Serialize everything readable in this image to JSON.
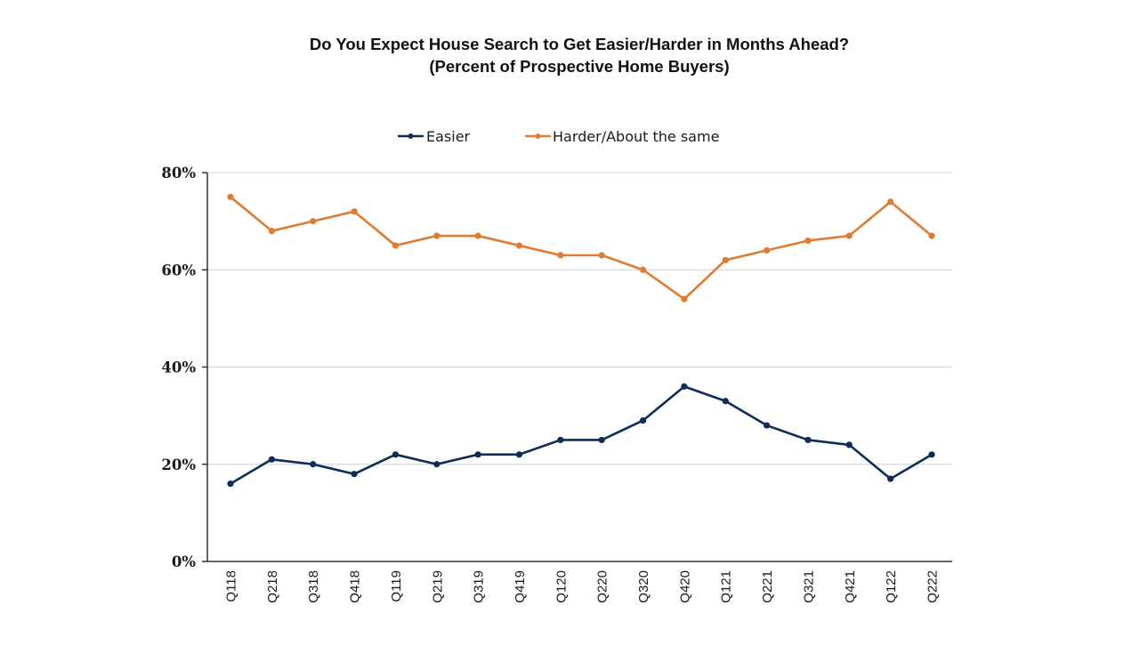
{
  "chart_data": {
    "type": "line",
    "title": "Do You Expect House Search to Get Easier/Harder in Months Ahead?",
    "subtitle": "(Percent of Prospective Home Buyers)",
    "xlabel": "",
    "ylabel": "",
    "ylim": [
      0,
      80
    ],
    "yticks": [
      0,
      20,
      40,
      60,
      80
    ],
    "ytick_labels": [
      "0%",
      "20%",
      "40%",
      "60%",
      "80%"
    ],
    "grid": true,
    "legend_position": "top-center",
    "categories": [
      "Q118",
      "Q218",
      "Q318",
      "Q418",
      "Q119",
      "Q219",
      "Q319",
      "Q419",
      "Q120",
      "Q220",
      "Q320",
      "Q420",
      "Q121",
      "Q221",
      "Q321",
      "Q421",
      "Q122",
      "Q222"
    ],
    "series": [
      {
        "name": "Easier",
        "color": "#0d2d57",
        "values": [
          16,
          21,
          20,
          18,
          22,
          20,
          22,
          22,
          25,
          25,
          29,
          36,
          33,
          28,
          25,
          24,
          17,
          22
        ]
      },
      {
        "name": "Harder/About the same",
        "color": "#e07b32",
        "values": [
          75,
          68,
          70,
          72,
          65,
          67,
          67,
          65,
          63,
          63,
          60,
          54,
          62,
          64,
          66,
          67,
          74,
          67
        ]
      }
    ]
  }
}
